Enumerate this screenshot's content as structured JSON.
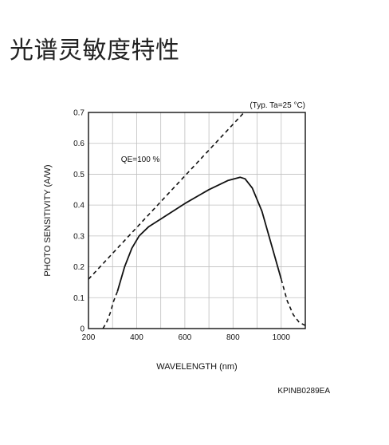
{
  "page": {
    "title": "光谱灵敏度特性"
  },
  "chart_data": {
    "type": "line",
    "title": "",
    "xlabel": "WAVELENGTH (nm)",
    "ylabel": "PHOTO SENSITIVITY (A/W)",
    "xlim": [
      200,
      1100
    ],
    "ylim": [
      0,
      0.7
    ],
    "xticks": [
      200,
      400,
      600,
      800,
      1000
    ],
    "yticks": [
      0,
      0.1,
      0.2,
      0.3,
      0.4,
      0.5,
      0.6,
      0.7
    ],
    "ytick_labels": [
      "0",
      "0.1",
      "0.2",
      "0.3",
      "0.4",
      "0.5",
      "0.6",
      "0.7"
    ],
    "grid": true,
    "condition_label": "(Typ. Ta=25 °C)",
    "figure_code": "KPINB0289EA",
    "colors": {
      "line": "#111111",
      "grid": "#bfbfbf",
      "frame": "#111111"
    },
    "series": [
      {
        "name": "QE=100 %",
        "style": "dashed",
        "x": [
          200,
          846
        ],
        "y": [
          0.16,
          0.7
        ]
      },
      {
        "name": "",
        "style": "solid",
        "x": [
          320,
          350,
          380,
          410,
          450,
          500,
          600,
          700,
          780,
          830,
          850,
          880,
          920,
          960,
          1000
        ],
        "y": [
          0.12,
          0.2,
          0.26,
          0.3,
          0.33,
          0.355,
          0.405,
          0.45,
          0.48,
          0.49,
          0.485,
          0.455,
          0.38,
          0.27,
          0.16
        ]
      },
      {
        "name": "",
        "style": "dashed",
        "x": [
          260,
          275,
          290,
          305,
          320
        ],
        "y": [
          0.0,
          0.02,
          0.05,
          0.09,
          0.12
        ]
      },
      {
        "name": "",
        "style": "dashed",
        "x": [
          1000,
          1025,
          1050,
          1075,
          1100
        ],
        "y": [
          0.16,
          0.09,
          0.045,
          0.02,
          0.01
        ]
      }
    ]
  }
}
